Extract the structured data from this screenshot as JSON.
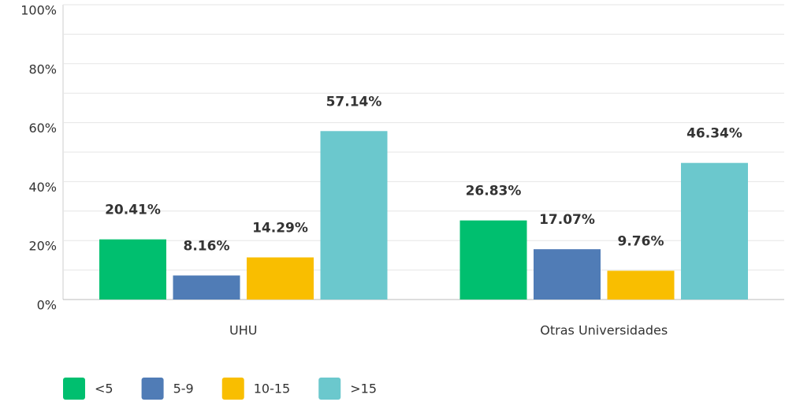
{
  "chart_data": {
    "type": "bar",
    "categories": [
      "UHU",
      "Otras Universidades"
    ],
    "series": [
      {
        "name": "<5",
        "color": "#00bf6f",
        "values": [
          20.41,
          26.83
        ],
        "value_labels": [
          "20.41%",
          "26.83%"
        ]
      },
      {
        "name": "5-9",
        "color": "#507cb6",
        "values": [
          8.16,
          17.07
        ],
        "value_labels": [
          "8.16%",
          "17.07%"
        ]
      },
      {
        "name": "10-15",
        "color": "#f9be00",
        "values": [
          14.29,
          9.76
        ],
        "value_labels": [
          "14.29%",
          "9.76%"
        ]
      },
      {
        "name": ">15",
        "color": "#6bc8cd",
        "values": [
          57.14,
          46.34
        ],
        "value_labels": [
          "57.14%",
          "46.34%"
        ]
      }
    ],
    "ylim": [
      0,
      100
    ],
    "yticks": [
      {
        "value": 0,
        "label": "0%"
      },
      {
        "value": 20,
        "label": "20%"
      },
      {
        "value": 40,
        "label": "40%"
      },
      {
        "value": 60,
        "label": "60%"
      },
      {
        "value": 80,
        "label": "80%"
      },
      {
        "value": 100,
        "label": "100%"
      }
    ],
    "minor_yticks": [
      10,
      30,
      50,
      70,
      90
    ],
    "grid": true,
    "legend": "bottom-left"
  }
}
